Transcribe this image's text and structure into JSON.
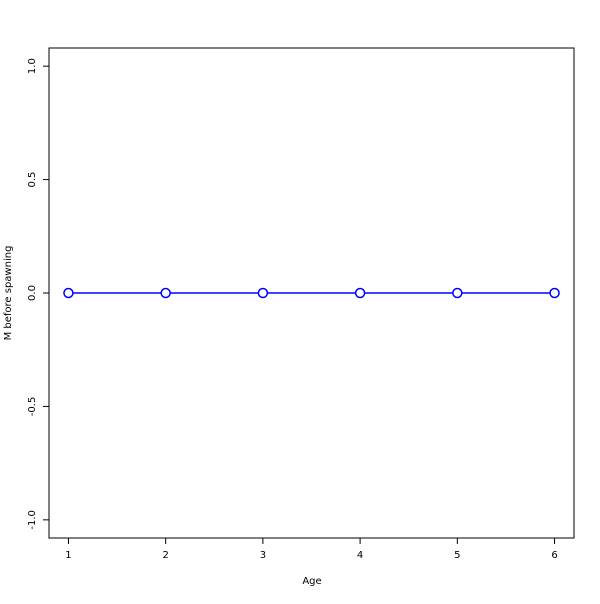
{
  "chart_data": {
    "type": "line",
    "title": "",
    "xlabel": "Age",
    "ylabel": "M before spawning",
    "x": [
      1,
      2,
      3,
      4,
      5,
      6
    ],
    "series": [
      {
        "values": [
          0,
          0,
          0,
          0,
          0,
          0
        ],
        "color": "#0000ff",
        "marker": "open-circle"
      }
    ],
    "xlim": [
      0.8,
      6.2
    ],
    "ylim": [
      -1.08,
      1.08
    ],
    "xticks": [
      "1",
      "2",
      "3",
      "4",
      "5",
      "6"
    ],
    "yticks": [
      "-1.0",
      "-0.5",
      "0.0",
      "0.5",
      "1.0"
    ],
    "grid": false,
    "legend": "none"
  }
}
